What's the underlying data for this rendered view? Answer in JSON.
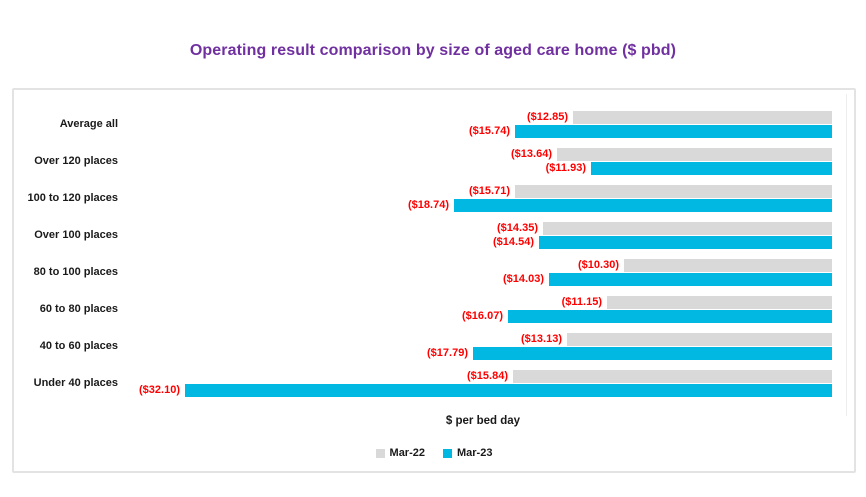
{
  "title": {
    "text": "Operating result comparison by size of aged care home ($ pbd)"
  },
  "chart_data": {
    "type": "bar",
    "orientation": "horizontal",
    "title": "Operating result comparison by size of aged care home ($ pbd)",
    "categories": [
      "Average all",
      "Over 120 places",
      "100 to 120 places",
      "Over 100 places",
      "80 to 100 places",
      "60 to 80 places",
      "40 to 60 places",
      "Under 40 places"
    ],
    "series": [
      {
        "name": "Mar-22",
        "color": "#D9D9D9",
        "values": [
          -12.85,
          -13.64,
          -15.71,
          -14.35,
          -10.3,
          -11.15,
          -13.13,
          -15.84
        ],
        "labels": [
          "($12.85)",
          "($13.64)",
          "($15.71)",
          "($14.35)",
          "($10.30)",
          "($11.15)",
          "($13.13)",
          "($15.84)"
        ]
      },
      {
        "name": "Mar-23",
        "color": "#00B8E2",
        "values": [
          -15.74,
          -11.93,
          -18.74,
          -14.54,
          -14.03,
          -16.07,
          -17.79,
          -32.1
        ],
        "labels": [
          "($15.74)",
          "($11.93)",
          "($18.74)",
          "($14.54)",
          "($14.03)",
          "($16.07)",
          "($17.79)",
          "($32.10)"
        ]
      }
    ],
    "xlabel": "$ per bed day",
    "value_axis": {
      "min": -35,
      "max": 0
    },
    "data_label_color": "#FF0000",
    "legend_position": "bottom",
    "grid": false
  },
  "colors": {
    "title": "#7030A0",
    "label_red": "#FF0000",
    "mar22": "#D9D9D9",
    "mar23": "#00B8E2",
    "panel_border": "#E3E3E3",
    "gridline": "#EDEDED",
    "text": "#1A1A1A"
  }
}
